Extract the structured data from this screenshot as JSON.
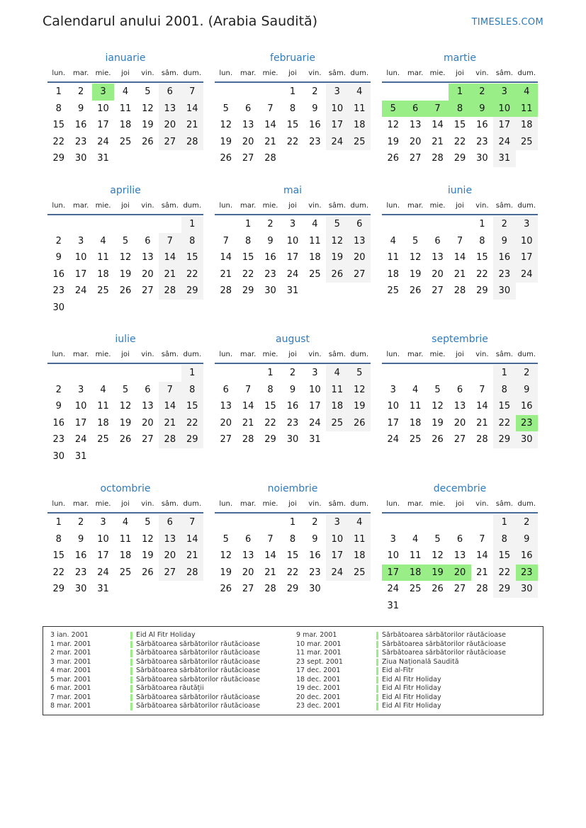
{
  "header": {
    "title": "Calendarul anului 2001. (Arabia Saudită)",
    "brand": "TIMESLES.COM"
  },
  "weekdays": [
    "lun.",
    "mar.",
    "mie.",
    "joi",
    "vin.",
    "sâm.",
    "dum."
  ],
  "colors": {
    "holiday": "#99ee88",
    "weekend": "#f3f3f3",
    "month_title": "#2f7bbf"
  },
  "months": [
    {
      "name": "ianuarie",
      "start_weekday": "lun.",
      "days": 31,
      "holidays": [
        3
      ]
    },
    {
      "name": "februarie",
      "start_weekday": "joi",
      "days": 28,
      "holidays": []
    },
    {
      "name": "martie",
      "start_weekday": "joi",
      "days": 31,
      "holidays": [
        1,
        2,
        3,
        4,
        5,
        6,
        7,
        8,
        9,
        10,
        11
      ]
    },
    {
      "name": "aprilie",
      "start_weekday": "dum.",
      "days": 30,
      "holidays": []
    },
    {
      "name": "mai",
      "start_weekday": "mar.",
      "days": 31,
      "holidays": []
    },
    {
      "name": "iunie",
      "start_weekday": "vin.",
      "days": 30,
      "holidays": []
    },
    {
      "name": "iulie",
      "start_weekday": "dum.",
      "days": 31,
      "holidays": []
    },
    {
      "name": "august",
      "start_weekday": "mie.",
      "days": 31,
      "holidays": []
    },
    {
      "name": "septembrie",
      "start_weekday": "sâm.",
      "days": 30,
      "holidays": [
        23
      ]
    },
    {
      "name": "octombrie",
      "start_weekday": "lun.",
      "days": 31,
      "holidays": []
    },
    {
      "name": "noiembrie",
      "start_weekday": "joi",
      "days": 30,
      "holidays": []
    },
    {
      "name": "decembrie",
      "start_weekday": "sâm.",
      "days": 31,
      "holidays": [
        17,
        18,
        19,
        20,
        23
      ]
    }
  ],
  "holiday_list": [
    {
      "date": "3 ian. 2001",
      "name": "Eid Al Fitr Holiday"
    },
    {
      "date": "1 mar. 2001",
      "name": "Sărbătoarea sărbătorilor răutăcioase"
    },
    {
      "date": "2 mar. 2001",
      "name": "Sărbătoarea sărbătorilor răutăcioase"
    },
    {
      "date": "3 mar. 2001",
      "name": "Sărbătoarea sărbătorilor răutăcioase"
    },
    {
      "date": "4 mar. 2001",
      "name": "Sărbătoarea sărbătorilor răutăcioase"
    },
    {
      "date": "5 mar. 2001",
      "name": "Sărbătoarea sărbătorilor răutăcioase"
    },
    {
      "date": "6 mar. 2001",
      "name": "Sărbătoarea răutății"
    },
    {
      "date": "7 mar. 2001",
      "name": "Sărbătoarea sărbătorilor răutăcioase"
    },
    {
      "date": "8 mar. 2001",
      "name": "Sărbătoarea sărbătorilor răutăcioase"
    },
    {
      "date": "9 mar. 2001",
      "name": "Sărbătoarea sărbătorilor răutăcioase"
    },
    {
      "date": "10 mar. 2001",
      "name": "Sărbătoarea sărbătorilor răutăcioase"
    },
    {
      "date": "11 mar. 2001",
      "name": "Sărbătoarea sărbătorilor răutăcioase"
    },
    {
      "date": "23 sept. 2001",
      "name": "Ziua Națională Saudită"
    },
    {
      "date": "17 dec. 2001",
      "name": "Eid al-Fitr"
    },
    {
      "date": "18 dec. 2001",
      "name": "Eid Al Fitr Holiday"
    },
    {
      "date": "19 dec. 2001",
      "name": "Eid Al Fitr Holiday"
    },
    {
      "date": "20 dec. 2001",
      "name": "Eid Al Fitr Holiday"
    },
    {
      "date": "23 dec. 2001",
      "name": "Eid Al Fitr Holiday"
    }
  ]
}
